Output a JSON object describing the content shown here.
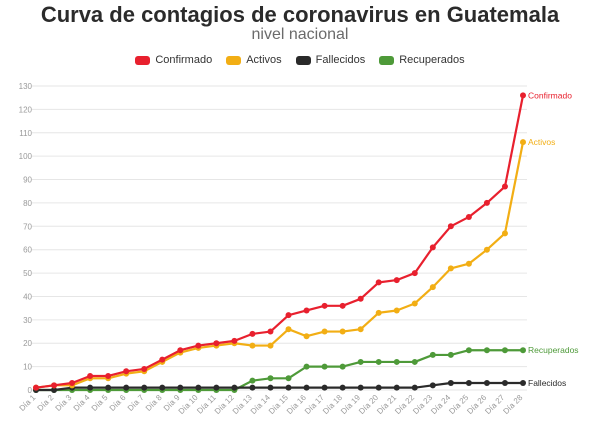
{
  "title": "Curva de contagios de coronavirus en Guatemala",
  "subtitle": "nivel nacional",
  "chart_data": {
    "type": "line",
    "title": "Curva de contagios de coronavirus en Guatemala",
    "subtitle": "nivel nacional",
    "xlabel": "",
    "ylabel": "",
    "ylim": [
      0,
      130
    ],
    "yticks": [
      0,
      10,
      20,
      30,
      40,
      50,
      60,
      70,
      80,
      90,
      100,
      110,
      120,
      130
    ],
    "grid": true,
    "legend_position": "top-center",
    "categories": [
      "Día 1",
      "Día 2",
      "Día 3",
      "Día 4",
      "Día 5",
      "Día 6",
      "Día 7",
      "Día 8",
      "Día 9",
      "Día 10",
      "Día 11",
      "Día 12",
      "Día 13",
      "Día 14",
      "Día 15",
      "Día 16",
      "Día 17",
      "Día 18",
      "Día 19",
      "Día 20",
      "Día 21",
      "Día 22",
      "Día 23",
      "Día 24",
      "Día 25",
      "Día 26",
      "Día 27",
      "Día 28"
    ],
    "series": [
      {
        "name": "Confirmado",
        "color": "#e8202e",
        "end_label": "Confirmado",
        "values": [
          1,
          2,
          3,
          6,
          6,
          8,
          9,
          13,
          17,
          19,
          20,
          21,
          24,
          25,
          32,
          34,
          36,
          36,
          39,
          46,
          47,
          50,
          61,
          70,
          74,
          80,
          87,
          126
        ]
      },
      {
        "name": "Activos",
        "color": "#f2ae14",
        "end_label": "Activos",
        "values": [
          1,
          2,
          2,
          5,
          5,
          7,
          8,
          12,
          16,
          18,
          19,
          20,
          19,
          19,
          26,
          23,
          25,
          25,
          26,
          33,
          34,
          37,
          44,
          52,
          54,
          60,
          67,
          106
        ]
      },
      {
        "name": "Fallecidos",
        "color": "#2a2a2a",
        "end_label": "Fallecidos",
        "values": [
          0,
          0,
          1,
          1,
          1,
          1,
          1,
          1,
          1,
          1,
          1,
          1,
          1,
          1,
          1,
          1,
          1,
          1,
          1,
          1,
          1,
          1,
          2,
          3,
          3,
          3,
          3,
          3
        ]
      },
      {
        "name": "Recuperados",
        "color": "#4e9a39",
        "end_label": "Recuperados",
        "values": [
          0,
          0,
          0,
          0,
          0,
          0,
          0,
          0,
          0,
          0,
          0,
          0,
          4,
          5,
          5,
          10,
          10,
          10,
          12,
          12,
          12,
          12,
          15,
          15,
          17,
          17,
          17,
          17
        ]
      }
    ]
  }
}
